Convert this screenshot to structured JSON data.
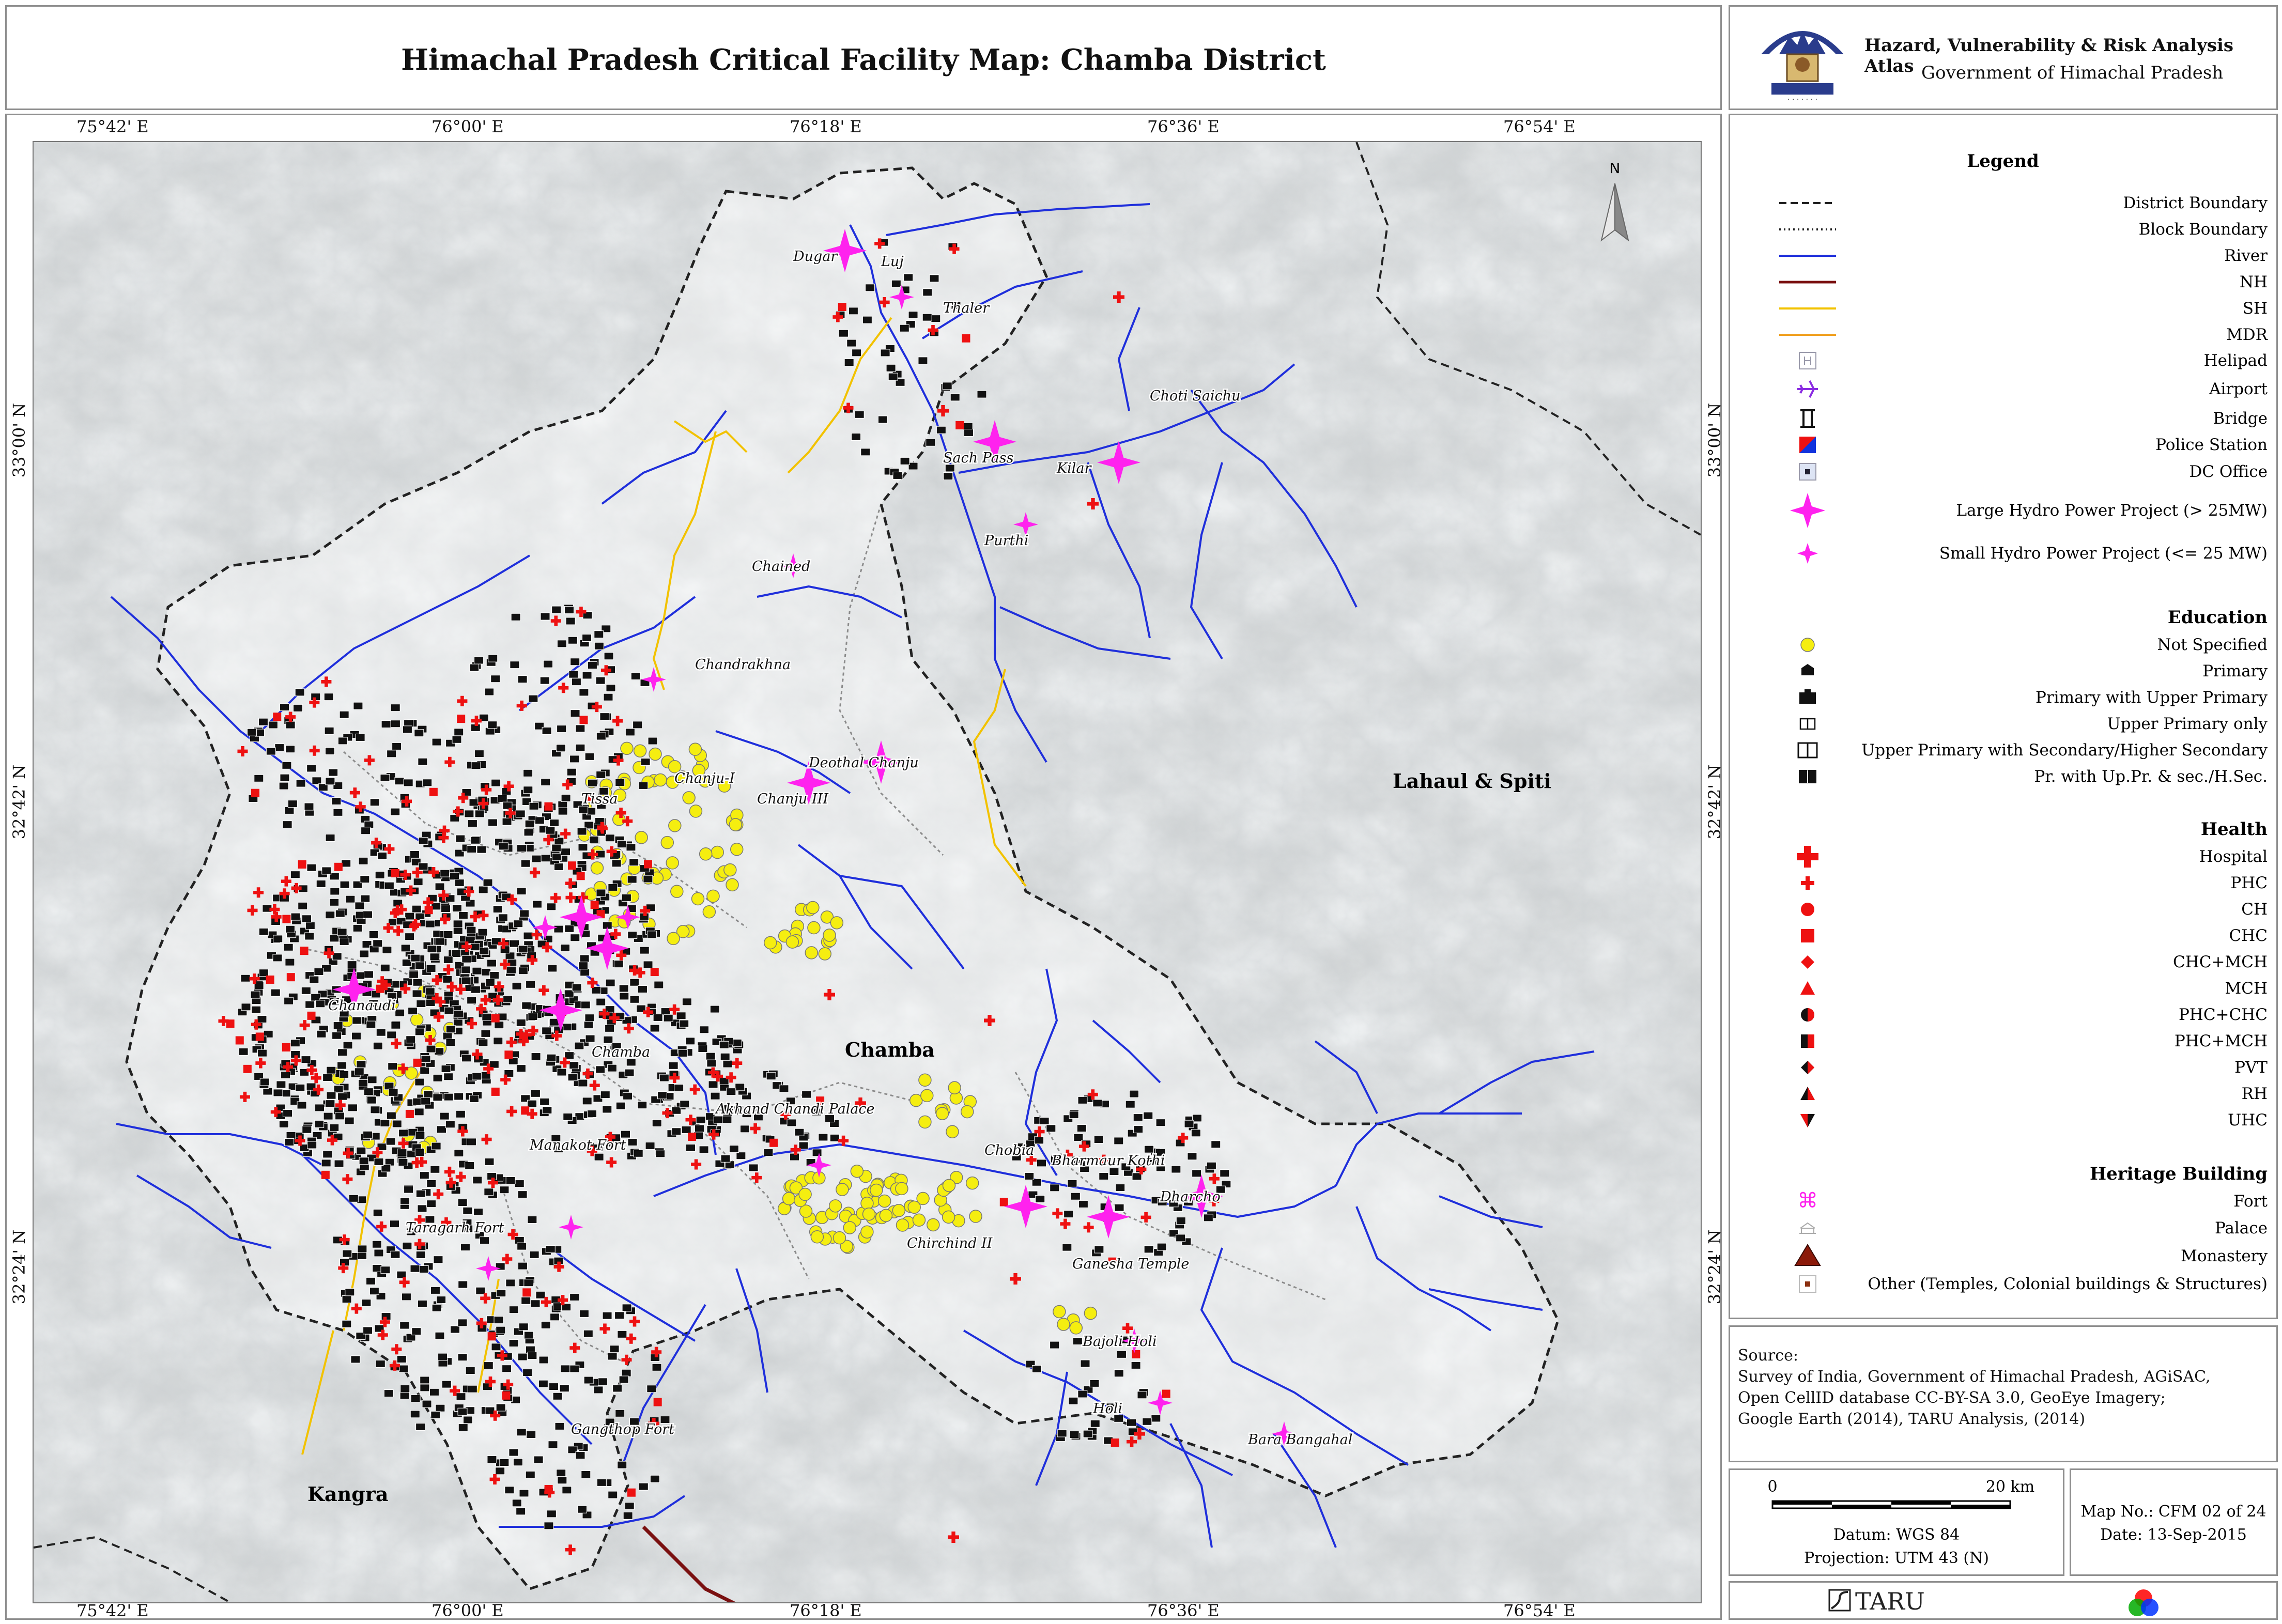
{
  "title": "Himachal Pradesh Critical Facility Map: Chamba District",
  "header": {
    "emblem_icon": "himachal-pradesh-emblem",
    "atlas_title": "Hazard, Vulnerability & Risk Analysis Atlas",
    "government": "Government of Himachal Pradesh"
  },
  "map": {
    "north_arrow_label": "N",
    "grid_top": [
      "75°42' E",
      "76°00' E",
      "76°18' E",
      "76°36' E",
      "76°54' E"
    ],
    "grid_bottom": [
      "75°42' E",
      "76°00' E",
      "76°18' E",
      "76°36' E",
      "76°54' E"
    ],
    "grid_left": [
      "33°00' N",
      "32°42' N",
      "32°24' N"
    ],
    "grid_right": [
      "33°00' N",
      "32°42' N",
      "32°24' N"
    ],
    "region_labels": [
      "Lahaul & Spiti",
      "Chamba",
      "Kangra"
    ],
    "place_labels": [
      "Dugar",
      "Luj",
      "Thaler",
      "Choti Saichu",
      "Sach Pass",
      "Kilar",
      "Purthi",
      "Chained",
      "Chandrakhna",
      "Chanju-I",
      "Chanju III",
      "Deothal Chanju",
      "Tissa",
      "Chanaudi",
      "Chamba",
      "Akhand Chandi Palace",
      "Manakot Fort",
      "Taragarh Fort",
      "Chobia",
      "Bharmaur Kothi",
      "Dharcho",
      "Ganesha Temple",
      "Chirchind II",
      "Bajoli Holi",
      "Holi",
      "Bara Bangahal",
      "Gangthop Fort"
    ],
    "colors": {
      "river": "#1f2fdb",
      "nh": "#7a1010",
      "sh": "#f2c200",
      "mdr": "#f0a020",
      "hydro": "#ff22ee",
      "school_not_specified": "#f5ee10",
      "health": "#ee1111"
    }
  },
  "legend": {
    "title": "Legend",
    "lines": [
      {
        "label": "District Boundary",
        "icon": "dashed-line-icon"
      },
      {
        "label": "Block Boundary",
        "icon": "dotted-line-icon"
      },
      {
        "label": "River",
        "icon": "river-line-icon"
      },
      {
        "label": "NH",
        "icon": "nh-line-icon"
      },
      {
        "label": "SH",
        "icon": "sh-line-icon"
      },
      {
        "label": "MDR",
        "icon": "mdr-line-icon"
      }
    ],
    "infrastructure": [
      {
        "label": "Helipad",
        "icon": "helipad-icon"
      },
      {
        "label": "Airport",
        "icon": "airport-icon"
      },
      {
        "label": "Bridge",
        "icon": "bridge-icon"
      },
      {
        "label": "Police Station",
        "icon": "police-station-icon"
      },
      {
        "label": "DC Office",
        "icon": "dc-office-icon"
      },
      {
        "label": "Large Hydro Power Project (> 25MW)",
        "icon": "large-hydro-icon"
      },
      {
        "label": "Small Hydro Power Project (<= 25 MW)",
        "icon": "small-hydro-icon"
      }
    ],
    "education_heading": "Education",
    "education": [
      {
        "label": "Not Specified",
        "icon": "yellow-dot-icon"
      },
      {
        "label": "Primary",
        "icon": "primary-school-icon"
      },
      {
        "label": "Primary with Upper Primary",
        "icon": "upper-primary-school-icon"
      },
      {
        "label": "Upper Primary only",
        "icon": "open-book-small-icon"
      },
      {
        "label": "Upper Primary with Secondary/Higher Secondary",
        "icon": "open-book-icon"
      },
      {
        "label": "Pr. with Up.Pr. & sec./H.Sec.",
        "icon": "book-filled-icon"
      }
    ],
    "health_heading": "Health",
    "health": [
      {
        "label": "Hospital",
        "icon": "hospital-cross-icon"
      },
      {
        "label": "PHC",
        "icon": "phc-cross-icon"
      },
      {
        "label": "CH",
        "icon": "red-circle-icon"
      },
      {
        "label": "CHC",
        "icon": "red-square-icon"
      },
      {
        "label": "CHC+MCH",
        "icon": "red-diamond-icon"
      },
      {
        "label": "MCH",
        "icon": "red-triangle-icon"
      },
      {
        "label": "PHC+CHC",
        "icon": "half-circle-icon"
      },
      {
        "label": "PHC+MCH",
        "icon": "half-square-icon"
      },
      {
        "label": "PVT",
        "icon": "half-diamond-icon"
      },
      {
        "label": "RH",
        "icon": "half-triangle-icon"
      },
      {
        "label": "UHC",
        "icon": "down-triangle-icon"
      }
    ],
    "heritage_heading": "Heritage Building",
    "heritage": [
      {
        "label": "Fort",
        "icon": "fort-icon"
      },
      {
        "label": "Palace",
        "icon": "palace-icon"
      },
      {
        "label": "Monastery",
        "icon": "monastery-icon"
      },
      {
        "label": "Other (Temples, Colonial buildings & Structures)",
        "icon": "other-heritage-icon"
      }
    ]
  },
  "source": {
    "heading": "Source:",
    "lines": [
      "Survey of India, Government of Himachal Pradesh, AGiSAC,",
      "Open CellID database CC-BY-SA 3.0, GeoEye Imagery;",
      "Google Earth (2014), TARU Analysis, (2014)"
    ]
  },
  "scale": {
    "start": "0",
    "end": "20 km",
    "datum": "Datum: WGS 84",
    "projection": "Projection: UTM 43 (N)"
  },
  "map_info": {
    "map_no": "Map No.: CFM 02 of 24",
    "date": "Date: 13-Sep-2015"
  },
  "footer": {
    "taru_logo_text": "TARU",
    "taru_icon": "taru-logo-icon",
    "rgb_icon": "rgb-circles-icon"
  }
}
